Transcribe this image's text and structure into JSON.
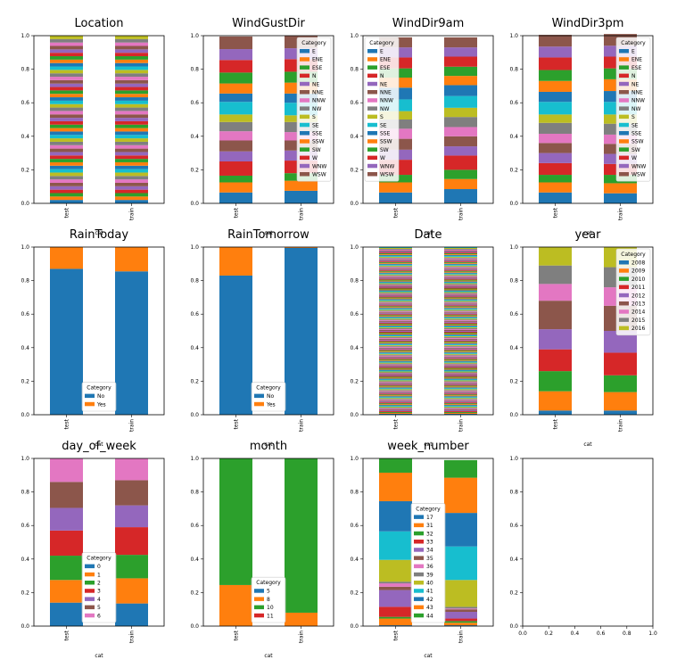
{
  "chart_data": [
    {
      "type": "bar",
      "stacked": true,
      "title": "Location",
      "xlabel": "cat",
      "categories": [
        "test",
        "train"
      ],
      "ylim": [
        0,
        1
      ],
      "yticks": [
        "0.0",
        "0.2",
        "0.4",
        "0.6",
        "0.8",
        "1.0"
      ],
      "legend": null,
      "series_count": 49,
      "equal_share": true
    },
    {
      "type": "bar",
      "stacked": true,
      "title": "WindGustDir",
      "xlabel": "cat",
      "categories": [
        "test",
        "train"
      ],
      "ylim": [
        0,
        1
      ],
      "yticks": [
        "0.0",
        "0.2",
        "0.4",
        "0.6",
        "0.8",
        "1.0"
      ],
      "legend": {
        "title": "Category",
        "placement": "top-right",
        "series": [
          "E",
          "ENE",
          "ESE",
          "N",
          "NE",
          "NNE",
          "NNW",
          "NW",
          "S",
          "SE",
          "SSE",
          "SSW",
          "SW",
          "W",
          "WNW",
          "WSW"
        ]
      },
      "series_values": [
        [
          0.065,
          0.075
        ],
        [
          0.06,
          0.06
        ],
        [
          0.04,
          0.045
        ],
        [
          0.085,
          0.075
        ],
        [
          0.06,
          0.06
        ],
        [
          0.065,
          0.06
        ],
        [
          0.055,
          0.05
        ],
        [
          0.055,
          0.06
        ],
        [
          0.045,
          0.04
        ],
        [
          0.075,
          0.075
        ],
        [
          0.05,
          0.055
        ],
        [
          0.06,
          0.065
        ],
        [
          0.065,
          0.065
        ],
        [
          0.075,
          0.075
        ],
        [
          0.065,
          0.065
        ],
        [
          0.075,
          0.075
        ]
      ]
    },
    {
      "type": "bar",
      "stacked": true,
      "title": "WindDir9am",
      "xlabel": "cat",
      "categories": [
        "test",
        "train"
      ],
      "ylim": [
        0,
        1
      ],
      "yticks": [
        "0.0",
        "0.2",
        "0.4",
        "0.6",
        "0.8",
        "1.0"
      ],
      "legend": {
        "title": "Category",
        "placement": "top-left",
        "series": [
          "E",
          "ENE",
          "ESE",
          "N",
          "NE",
          "NNE",
          "NNW",
          "NW",
          "S",
          "SE",
          "SSE",
          "SSW",
          "SW",
          "W",
          "WNW",
          "WSW"
        ]
      },
      "series_values": [
        [
          0.065,
          0.085
        ],
        [
          0.06,
          0.06
        ],
        [
          0.045,
          0.055
        ],
        [
          0.09,
          0.085
        ],
        [
          0.06,
          0.055
        ],
        [
          0.065,
          0.06
        ],
        [
          0.06,
          0.055
        ],
        [
          0.055,
          0.06
        ],
        [
          0.05,
          0.055
        ],
        [
          0.07,
          0.07
        ],
        [
          0.07,
          0.065
        ],
        [
          0.06,
          0.055
        ],
        [
          0.055,
          0.055
        ],
        [
          0.065,
          0.06
        ],
        [
          0.06,
          0.055
        ],
        [
          0.06,
          0.06
        ]
      ]
    },
    {
      "type": "bar",
      "stacked": true,
      "title": "WindDir3pm",
      "xlabel": "cat",
      "categories": [
        "test",
        "train"
      ],
      "ylim": [
        0,
        1
      ],
      "yticks": [
        "0.0",
        "0.2",
        "0.4",
        "0.6",
        "0.8",
        "1.0"
      ],
      "legend": {
        "title": "Category",
        "placement": "top-right",
        "series": [
          "E",
          "ENE",
          "ESE",
          "N",
          "NE",
          "NNE",
          "NNW",
          "NW",
          "S",
          "SE",
          "SSE",
          "SSW",
          "SW",
          "W",
          "WNW",
          "WSW"
        ]
      },
      "series_values": [
        [
          0.065,
          0.06
        ],
        [
          0.06,
          0.06
        ],
        [
          0.045,
          0.05
        ],
        [
          0.07,
          0.065
        ],
        [
          0.06,
          0.06
        ],
        [
          0.06,
          0.06
        ],
        [
          0.055,
          0.055
        ],
        [
          0.065,
          0.065
        ],
        [
          0.05,
          0.055
        ],
        [
          0.075,
          0.075
        ],
        [
          0.06,
          0.065
        ],
        [
          0.065,
          0.07
        ],
        [
          0.065,
          0.065
        ],
        [
          0.075,
          0.07
        ],
        [
          0.065,
          0.065
        ],
        [
          0.07,
          0.07
        ]
      ]
    },
    {
      "type": "bar",
      "stacked": true,
      "title": "RainToday",
      "xlabel": "cat",
      "categories": [
        "test",
        "train"
      ],
      "ylim": [
        0,
        1
      ],
      "yticks": [
        "0.0",
        "0.2",
        "0.4",
        "0.6",
        "0.8",
        "1.0"
      ],
      "legend": {
        "title": "Category",
        "placement": "bottom-center",
        "series": [
          "No",
          "Yes"
        ]
      },
      "series_values": [
        [
          0.87,
          0.855
        ],
        [
          0.13,
          0.145
        ]
      ]
    },
    {
      "type": "bar",
      "stacked": true,
      "title": "RainTomorrow",
      "xlabel": "cat",
      "categories": [
        "test",
        "train"
      ],
      "ylim": [
        0,
        1
      ],
      "yticks": [
        "0.0",
        "0.2",
        "0.4",
        "0.6",
        "0.8",
        "1.0"
      ],
      "legend": {
        "title": "Category",
        "placement": "bottom-center",
        "series": [
          "No",
          "Yes"
        ]
      },
      "series_values": [
        [
          0.83,
          0.995
        ],
        [
          0.17,
          0.005
        ]
      ]
    },
    {
      "type": "bar",
      "stacked": true,
      "title": "Date",
      "xlabel": "cat",
      "categories": [
        "test",
        "train"
      ],
      "ylim": [
        0,
        1
      ],
      "yticks": [
        "0.0",
        "0.2",
        "0.4",
        "0.6",
        "0.8",
        "1.0"
      ],
      "legend": null,
      "series_count": 190,
      "equal_share": true
    },
    {
      "type": "bar",
      "stacked": true,
      "title": "year",
      "xlabel": "cat",
      "categories": [
        "test",
        "train"
      ],
      "ylim": [
        0,
        1
      ],
      "yticks": [
        "0.0",
        "0.2",
        "0.4",
        "0.6",
        "0.8",
        "1.0"
      ],
      "legend": {
        "title": "Category",
        "placement": "top-right",
        "series": [
          "2008",
          "2009",
          "2010",
          "2011",
          "2012",
          "2013",
          "2014",
          "2015",
          "2016"
        ]
      },
      "series_values": [
        [
          0.025,
          0.025
        ],
        [
          0.115,
          0.11
        ],
        [
          0.12,
          0.1
        ],
        [
          0.13,
          0.135
        ],
        [
          0.12,
          0.13
        ],
        [
          0.17,
          0.15
        ],
        [
          0.1,
          0.11
        ],
        [
          0.11,
          0.12
        ],
        [
          0.11,
          0.12
        ]
      ]
    },
    {
      "type": "bar",
      "stacked": true,
      "title": "day_of_week",
      "xlabel": "cat",
      "categories": [
        "test",
        "train"
      ],
      "ylim": [
        0,
        1
      ],
      "yticks": [
        "0.0",
        "0.2",
        "0.4",
        "0.6",
        "0.8",
        "1.0"
      ],
      "legend": {
        "title": "Category",
        "placement": "bottom-center",
        "series": [
          "0",
          "1",
          "2",
          "3",
          "4",
          "5",
          "6"
        ]
      },
      "series_values": [
        [
          0.14,
          0.135
        ],
        [
          0.135,
          0.15
        ],
        [
          0.145,
          0.14
        ],
        [
          0.15,
          0.165
        ],
        [
          0.135,
          0.13
        ],
        [
          0.155,
          0.15
        ],
        [
          0.14,
          0.13
        ]
      ]
    },
    {
      "type": "bar",
      "stacked": true,
      "title": "month",
      "xlabel": "cat",
      "categories": [
        "test",
        "train"
      ],
      "ylim": [
        0,
        1
      ],
      "yticks": [
        "0.0",
        "0.2",
        "0.4",
        "0.6",
        "0.8",
        "1.0"
      ],
      "legend": {
        "title": "Category",
        "placement": "bottom-center",
        "series": [
          "5",
          "8",
          "10",
          "11"
        ]
      },
      "series_values": [
        [
          0,
          0
        ],
        [
          0.245,
          0.08
        ],
        [
          0.755,
          0.92
        ],
        [
          0,
          0
        ]
      ]
    },
    {
      "type": "bar",
      "stacked": true,
      "title": "week_number",
      "xlabel": "cat",
      "categories": [
        "test",
        "train"
      ],
      "ylim": [
        0,
        1
      ],
      "yticks": [
        "0.0",
        "0.2",
        "0.4",
        "0.6",
        "0.8",
        "1.0"
      ],
      "legend": {
        "title": "Category",
        "placement": "bottom-center",
        "series": [
          "17",
          "31",
          "32",
          "33",
          "34",
          "35",
          "36",
          "39",
          "40",
          "41",
          "42",
          "43",
          "44"
        ]
      },
      "series_values": [
        [
          0.005,
          0.005
        ],
        [
          0.04,
          0.015
        ],
        [
          0.01,
          0.01
        ],
        [
          0.06,
          0.015
        ],
        [
          0.1,
          0.04
        ],
        [
          0.02,
          0.015
        ],
        [
          0.02,
          0.005
        ],
        [
          0.01,
          0.01
        ],
        [
          0.13,
          0.16
        ],
        [
          0.17,
          0.2
        ],
        [
          0.18,
          0.2
        ],
        [
          0.17,
          0.21
        ],
        [
          0.085,
          0.105
        ]
      ]
    },
    {
      "type": "empty",
      "title": "",
      "xlim": [
        0,
        1
      ],
      "ylim": [
        0,
        1
      ],
      "xticks": [
        "0.0",
        "0.2",
        "0.4",
        "0.6",
        "0.8",
        "1.0"
      ],
      "yticks": [
        "0.0",
        "0.2",
        "0.4",
        "0.6",
        "0.8",
        "1.0"
      ]
    }
  ],
  "colors": [
    "#1f77b4",
    "#ff7f0e",
    "#2ca02c",
    "#d62728",
    "#9467bd",
    "#8c564b",
    "#e377c2",
    "#7f7f7f",
    "#bcbd22",
    "#17becf"
  ]
}
